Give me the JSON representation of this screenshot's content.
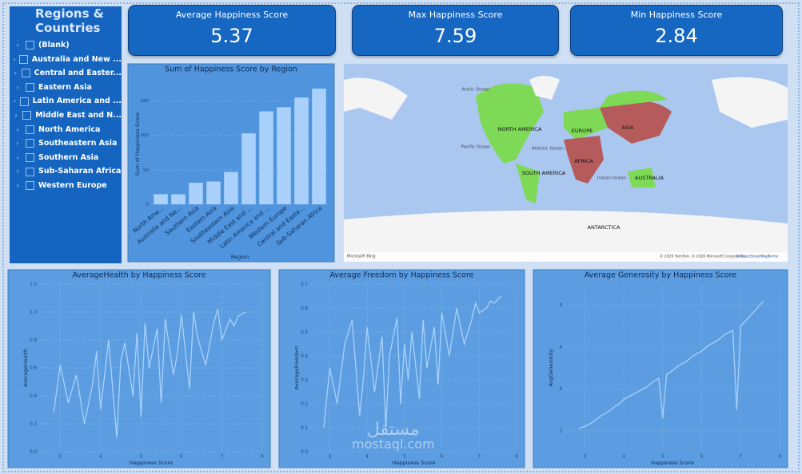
{
  "slicer": {
    "title": "Regions & Countries",
    "items": [
      "(Blank)",
      "Australia and New ...",
      "Central and Easter...",
      "Eastern Asia",
      "Latin America and ...",
      "Middle East and N...",
      "North America",
      "Southeastern Asia",
      "Southern Asia",
      "Sub-Saharan Africa",
      "Western Europe"
    ]
  },
  "cards": [
    {
      "label": "Average Happiness Score",
      "value": "5.37"
    },
    {
      "label": "Max Happiness Score",
      "value": "7.59"
    },
    {
      "label": "Min Happiness Score",
      "value": "2.84"
    }
  ],
  "map": {
    "labels": [
      "Arctic Ocean",
      "NORTH AMERICA",
      "EUROPE",
      "ASIA",
      "Pacific Ocean",
      "Atlantic Ocean",
      "AFRICA",
      "SOUTH AMERICA",
      "Indian Ocean",
      "AUSTRALIA",
      "ANTARCTICA"
    ],
    "brand": "Microsoft Bing",
    "attribution": "© 2020 TomTom, © 2020 Microsoft Corporation",
    "osm": "© OpenStreetMap",
    "terms": "Terms"
  },
  "watermark": [
    "مستقل",
    "mostaql.com"
  ],
  "chart_data": [
    {
      "type": "bar",
      "title": "Sum of Happiness Score by Region",
      "x_label": "Region",
      "y_label": "Sum of Happiness Score",
      "categories": [
        "North Ame...",
        "Australia and Ne...",
        "Southern Asia",
        "Eastern Asia",
        "Southeastern Asia",
        "Middle East and ...",
        "Latin America and ...",
        "Western Europe",
        "Central and Easte...",
        "Sub-Saharan Africa"
      ],
      "values": [
        14.7,
        14.6,
        31.3,
        33,
        47,
        103,
        135,
        141,
        155,
        168
      ],
      "color": "#a9d1fb",
      "ylim": [
        0,
        175
      ],
      "yticks": [
        0,
        50,
        100,
        150
      ]
    },
    {
      "type": "line",
      "title": "AverageHealth by Happiness Score",
      "x_label": "Happiness Score",
      "y_label": "AverageHealth",
      "color": "#a9d1fb",
      "x": [
        2.84,
        3.0,
        3.2,
        3.4,
        3.6,
        3.8,
        3.9,
        4.0,
        4.2,
        4.4,
        4.5,
        4.6,
        4.8,
        4.9,
        5.0,
        5.1,
        5.2,
        5.4,
        5.5,
        5.6,
        5.8,
        5.9,
        6.0,
        6.2,
        6.3,
        6.4,
        6.6,
        6.8,
        6.9,
        7.0,
        7.2,
        7.3,
        7.4,
        7.59
      ],
      "values": [
        0.28,
        0.62,
        0.35,
        0.55,
        0.2,
        0.48,
        0.72,
        0.3,
        0.8,
        0.1,
        0.65,
        0.78,
        0.4,
        0.85,
        0.25,
        0.92,
        0.6,
        0.88,
        0.35,
        0.95,
        0.55,
        0.7,
        0.98,
        0.45,
        1.0,
        0.82,
        0.62,
        0.92,
        1.02,
        0.8,
        0.95,
        0.9,
        0.97,
        1.0
      ],
      "xlim": [
        2.5,
        8
      ],
      "xticks": [
        3,
        4,
        5,
        6,
        7,
        8
      ],
      "ylim": [
        0,
        1.2
      ],
      "yticks": [
        {
          "value": 0,
          "label": "0.0"
        },
        0.2,
        0.4,
        0.6,
        0.8,
        {
          "value": 1,
          "label": "1.0"
        },
        1.2
      ]
    },
    {
      "type": "line",
      "title": "Average Freedom by Happiness Score",
      "x_label": "Happiness Score",
      "y_label": "AverageFreedom",
      "color": "#a9d1fb",
      "x": [
        2.84,
        3.0,
        3.2,
        3.4,
        3.6,
        3.8,
        3.9,
        4.0,
        4.2,
        4.4,
        4.5,
        4.6,
        4.8,
        4.9,
        5.0,
        5.1,
        5.2,
        5.4,
        5.5,
        5.6,
        5.8,
        5.9,
        6.0,
        6.2,
        6.3,
        6.4,
        6.6,
        6.8,
        6.9,
        7.0,
        7.2,
        7.3,
        7.4,
        7.59
      ],
      "values": [
        0.1,
        0.35,
        0.2,
        0.45,
        0.55,
        0.15,
        0.3,
        0.52,
        0.25,
        0.48,
        0.1,
        0.4,
        0.56,
        0.2,
        0.45,
        0.3,
        0.5,
        0.22,
        0.55,
        0.35,
        0.52,
        0.28,
        0.58,
        0.4,
        0.5,
        0.6,
        0.45,
        0.55,
        0.62,
        0.58,
        0.6,
        0.63,
        0.62,
        0.65
      ],
      "xlim": [
        2.5,
        8
      ],
      "xticks": [
        3,
        4,
        5,
        6,
        7,
        8
      ],
      "ylim": [
        0,
        0.7
      ],
      "yticks": [
        {
          "value": 0,
          "label": "0.0"
        },
        0.1,
        0.2,
        0.3,
        0.4,
        0.5,
        0.6,
        0.7
      ]
    },
    {
      "type": "line",
      "title": "Average Generosity by Happiness Score",
      "x_label": "Happiness Score",
      "y_label": "AvgGenerosity",
      "color": "#a9d1fb",
      "x": [
        2.84,
        3.0,
        3.2,
        3.4,
        3.6,
        3.8,
        3.9,
        4.0,
        4.2,
        4.4,
        4.5,
        4.6,
        4.8,
        4.9,
        5.0,
        5.1,
        5.2,
        5.4,
        5.5,
        5.6,
        5.8,
        5.9,
        6.0,
        6.2,
        6.3,
        6.4,
        6.6,
        6.8,
        6.9,
        7.0,
        7.2,
        7.3,
        7.4,
        7.59
      ],
      "values": [
        2.05,
        2.1,
        2.2,
        2.35,
        2.45,
        2.6,
        2.65,
        2.75,
        2.85,
        2.95,
        3.0,
        3.05,
        3.2,
        3.25,
        2.3,
        3.35,
        3.4,
        3.55,
        3.6,
        3.65,
        3.8,
        3.85,
        3.9,
        4.05,
        4.1,
        4.15,
        4.3,
        4.4,
        2.5,
        4.5,
        4.7,
        4.8,
        4.9,
        5.1
      ],
      "xlim": [
        2.5,
        8
      ],
      "xticks": [
        3,
        4,
        5,
        6,
        7,
        8
      ],
      "ylim": [
        1.5,
        5.5
      ],
      "yticks": [
        2,
        3,
        4,
        5
      ]
    }
  ]
}
